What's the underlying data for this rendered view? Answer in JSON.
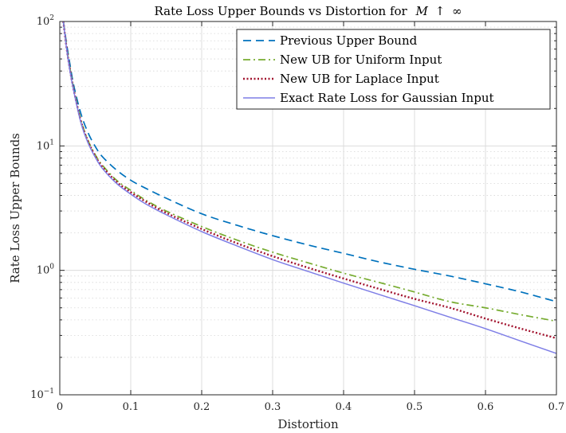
{
  "chart_data": {
    "type": "line",
    "title": "Rate Loss Upper Bounds vs Distortion for",
    "title_math": {
      "var": "M",
      "arrow": "↑",
      "inf": "∞"
    },
    "xlabel": "Distortion",
    "ylabel": "Rate Loss Upper Bounds",
    "xlim": [
      0,
      0.7
    ],
    "ylim": [
      0.1,
      100
    ],
    "yscale": "log",
    "grid": true,
    "minor_grid": true,
    "legend_position": "top-right",
    "x_ticks": [
      0,
      0.1,
      0.2,
      0.3,
      0.4,
      0.5,
      0.6,
      0.7
    ],
    "x_tick_labels": [
      "0",
      "0.1",
      "0.2",
      "0.3",
      "0.4",
      "0.5",
      "0.6",
      "0.7"
    ],
    "y_ticks": [
      0.1,
      1,
      10,
      100
    ],
    "y_tick_labels": [
      {
        "base": "10",
        "exp": "−1"
      },
      {
        "base": "10",
        "exp": "0"
      },
      {
        "base": "10",
        "exp": "1"
      },
      {
        "base": "10",
        "exp": "2"
      }
    ],
    "series": [
      {
        "name": "Previous Upper Bound",
        "color": "#0072BD",
        "style": "dashed",
        "x": [
          0.005,
          0.01,
          0.015,
          0.02,
          0.03,
          0.04,
          0.05,
          0.06,
          0.08,
          0.1,
          0.12,
          0.15,
          0.2,
          0.25,
          0.3,
          0.35,
          0.4,
          0.45,
          0.5,
          0.55,
          0.6,
          0.65,
          0.7
        ],
        "y": [
          100,
          64,
          43,
          30,
          18,
          12.7,
          9.9,
          8.2,
          6.4,
          5.3,
          4.6,
          3.8,
          2.85,
          2.3,
          1.9,
          1.6,
          1.37,
          1.17,
          1.02,
          0.9,
          0.78,
          0.67,
          0.56
        ]
      },
      {
        "name": "New UB for Uniform Input",
        "color": "#77AC30",
        "style": "dashdot",
        "x": [
          0.005,
          0.01,
          0.015,
          0.02,
          0.03,
          0.04,
          0.05,
          0.06,
          0.08,
          0.1,
          0.12,
          0.15,
          0.2,
          0.25,
          0.3,
          0.35,
          0.4,
          0.45,
          0.5,
          0.55,
          0.6,
          0.65,
          0.7
        ],
        "y": [
          100,
          60,
          40,
          28,
          16,
          11,
          8.5,
          7.0,
          5.3,
          4.4,
          3.7,
          3.0,
          2.25,
          1.75,
          1.4,
          1.15,
          0.95,
          0.8,
          0.67,
          0.56,
          0.5,
          0.44,
          0.39
        ]
      },
      {
        "name": "New UB for Laplace Input",
        "color": "#A2142F",
        "style": "dotted",
        "x": [
          0.005,
          0.01,
          0.015,
          0.02,
          0.03,
          0.04,
          0.05,
          0.06,
          0.08,
          0.1,
          0.12,
          0.15,
          0.2,
          0.25,
          0.3,
          0.35,
          0.4,
          0.45,
          0.5,
          0.55,
          0.6,
          0.65,
          0.7
        ],
        "y": [
          100,
          59,
          39,
          27.5,
          15.6,
          10.8,
          8.3,
          6.8,
          5.15,
          4.25,
          3.6,
          2.9,
          2.15,
          1.65,
          1.3,
          1.05,
          0.86,
          0.71,
          0.59,
          0.5,
          0.41,
          0.34,
          0.285
        ]
      },
      {
        "name": "Exact Rate Loss for Gaussian Input",
        "color": "#7E7EE6",
        "style": "solid",
        "x": [
          0.005,
          0.01,
          0.015,
          0.02,
          0.03,
          0.04,
          0.05,
          0.06,
          0.08,
          0.1,
          0.12,
          0.15,
          0.2,
          0.25,
          0.3,
          0.35,
          0.4,
          0.45,
          0.5,
          0.55,
          0.6,
          0.65,
          0.7
        ],
        "y": [
          100,
          58,
          38,
          27,
          15.2,
          10.5,
          8.1,
          6.6,
          5.0,
          4.1,
          3.45,
          2.8,
          2.05,
          1.57,
          1.22,
          0.98,
          0.79,
          0.64,
          0.52,
          0.42,
          0.34,
          0.27,
          0.215
        ]
      }
    ]
  }
}
